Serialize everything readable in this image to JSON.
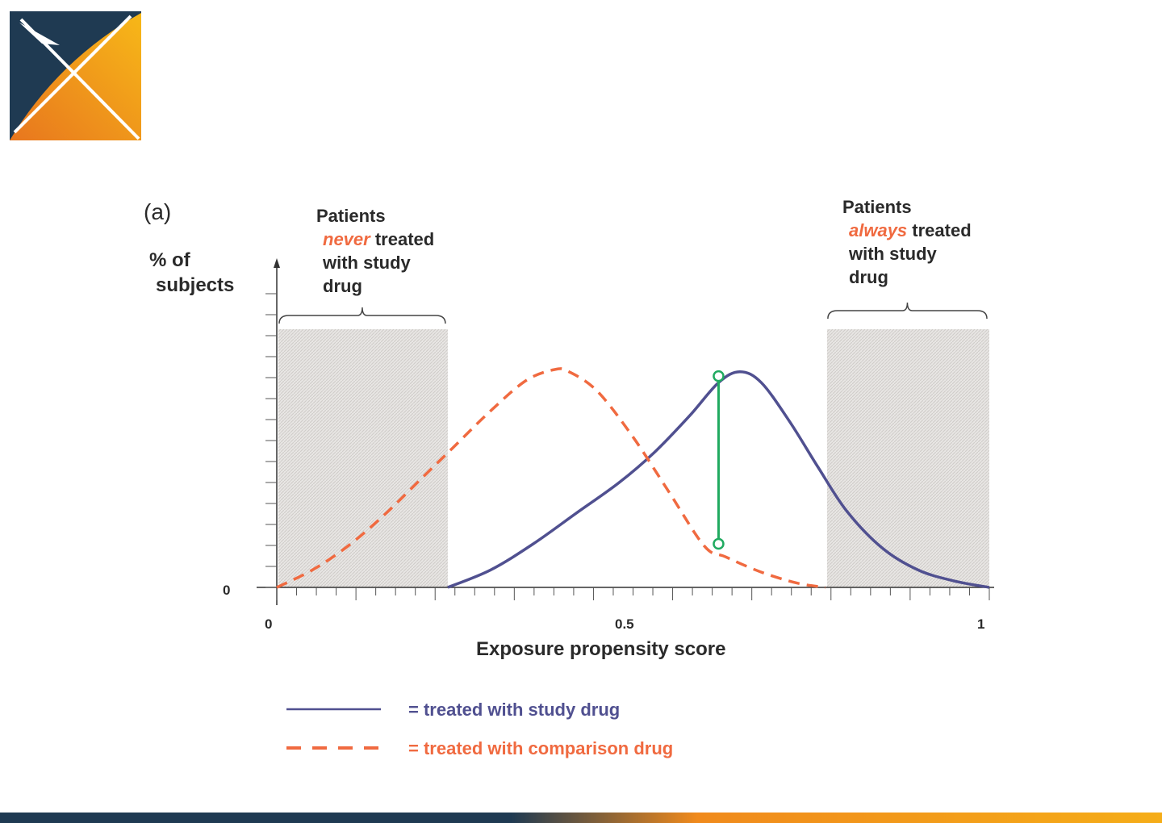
{
  "chart_data": {
    "type": "line",
    "panel_label": "(a)",
    "ylabel": [
      "% of",
      "subjects"
    ],
    "xlabel": "Exposure propensity score",
    "y_tick_labels": [
      "0"
    ],
    "x_tick_labels": [
      "0",
      "0.5",
      "1"
    ],
    "xlim": [
      0,
      1
    ],
    "ylim": [
      0,
      1
    ],
    "regions": [
      {
        "x_range": [
          0,
          0.24
        ],
        "lines": [
          [
            "Patients"
          ],
          [
            "never",
            " treated"
          ],
          [
            "with study"
          ],
          [
            "drug"
          ]
        ],
        "emphasis_word": "never"
      },
      {
        "x_range": [
          0.77,
          1.0
        ],
        "lines": [
          [
            "Patients"
          ],
          [
            "always",
            " treated"
          ],
          [
            "with study"
          ],
          [
            "drug"
          ]
        ],
        "emphasis_word": "always"
      }
    ],
    "series": [
      {
        "name": "= treated with study drug",
        "color": "#505090",
        "style": "solid",
        "x": [
          0.24,
          0.3,
          0.36,
          0.42,
          0.48,
          0.53,
          0.58,
          0.62,
          0.65,
          0.68,
          0.72,
          0.76,
          0.8,
          0.85,
          0.9,
          0.95,
          1.0
        ],
        "y": [
          0.0,
          0.08,
          0.2,
          0.34,
          0.48,
          0.62,
          0.79,
          0.94,
          0.99,
          0.94,
          0.76,
          0.55,
          0.35,
          0.18,
          0.08,
          0.03,
          0.0
        ]
      },
      {
        "name": "= treated with comparison drug",
        "color": "#f06a40",
        "style": "dashed",
        "x": [
          0.0,
          0.05,
          0.1,
          0.15,
          0.2,
          0.25,
          0.3,
          0.35,
          0.39,
          0.41,
          0.45,
          0.5,
          0.55,
          0.6,
          0.63,
          0.68,
          0.73,
          0.77
        ],
        "y": [
          0.0,
          0.08,
          0.19,
          0.33,
          0.49,
          0.65,
          0.81,
          0.95,
          1.0,
          0.99,
          0.9,
          0.69,
          0.44,
          0.19,
          0.14,
          0.07,
          0.02,
          0.0
        ]
      }
    ],
    "marker": {
      "x": 0.62,
      "y_from": 0.2,
      "y_to": 0.97,
      "color": "#20aa60"
    },
    "legend": "bottom-left",
    "grid": false
  }
}
